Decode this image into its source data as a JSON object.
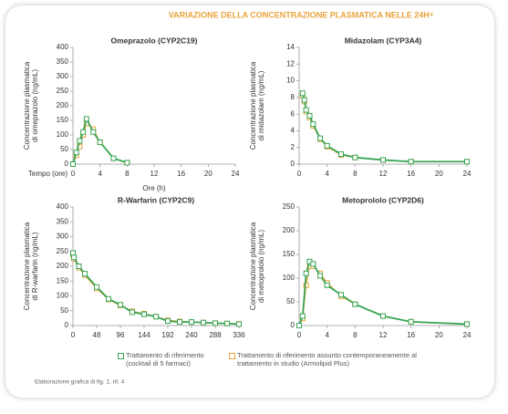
{
  "title": "VARIAZIONE DELLA CONCENTRAZIONE PLASMATICA NELLE 24H⁴",
  "footnote": "Elaborazione grafica di fig. 1, rif. 4",
  "chart_data": [
    {
      "type": "line",
      "title": "Omeprazolo (CYP2C19)",
      "ylabel": [
        "Concentrazione plasmatica",
        "di omeprazolo (ng/mL)"
      ],
      "xlabel": "Ore (h)",
      "xlabel_left": "Tempo (ore)",
      "x": [
        0,
        0.5,
        1,
        1.5,
        2,
        3,
        4,
        6,
        8
      ],
      "series": [
        {
          "name": "Trattamento di riferimento (cocktail di 5 farmaci)",
          "color": "#3aa655",
          "values": [
            0,
            40,
            80,
            110,
            155,
            110,
            75,
            20,
            5
          ]
        },
        {
          "name": "Trattamento di riferimento assunto contemporaneamente al trattamento in studio (Armolipid Plus)",
          "color": "#e8a33a",
          "values": [
            0,
            30,
            60,
            100,
            140,
            120,
            75,
            20,
            5
          ]
        }
      ],
      "xlim": [
        0,
        24
      ],
      "xticks": [
        0,
        4,
        8,
        12,
        16,
        20,
        24
      ],
      "ylim": [
        0,
        400
      ],
      "yticks": [
        0,
        50,
        100,
        150,
        200,
        250,
        300,
        350,
        400
      ]
    },
    {
      "type": "line",
      "title": "Midazolam (CYP3A4)",
      "ylabel": [
        "Concentrazione plasmatica",
        "di midazolam (ng/mL)"
      ],
      "x": [
        0.5,
        0.75,
        1,
        1.5,
        2,
        3,
        4,
        6,
        8,
        12,
        16,
        24
      ],
      "series": [
        {
          "color": "#3aa655",
          "values": [
            8.5,
            7.7,
            6.5,
            5.8,
            4.8,
            3.1,
            2.2,
            1.2,
            0.8,
            0.5,
            0.3,
            0.3
          ]
        },
        {
          "color": "#e8a33a",
          "values": [
            8.2,
            7.5,
            6.3,
            5.6,
            4.6,
            3.0,
            2.1,
            1.1,
            0.8,
            0.5,
            0.3,
            0.3
          ]
        }
      ],
      "xlim": [
        0,
        24
      ],
      "xticks": [
        0,
        4,
        8,
        12,
        16,
        20,
        24
      ],
      "ylim": [
        0,
        14
      ],
      "yticks": [
        0,
        2,
        4,
        6,
        8,
        10,
        12,
        14
      ]
    },
    {
      "type": "line",
      "title": "R-Warfarin (CYP2C9)",
      "ylabel": [
        "Concentrazione plasmatica",
        "di R-warfarin (ng/mL)"
      ],
      "x": [
        0,
        2,
        12,
        24,
        48,
        72,
        96,
        120,
        144,
        168,
        192,
        216,
        240,
        264,
        288,
        312,
        336
      ],
      "series": [
        {
          "color": "#3aa655",
          "values": [
            245,
            230,
            200,
            175,
            130,
            90,
            70,
            45,
            38,
            30,
            15,
            12,
            12,
            10,
            8,
            7,
            5
          ]
        },
        {
          "color": "#e8a33a",
          "values": [
            240,
            225,
            195,
            170,
            125,
            88,
            68,
            48,
            40,
            30,
            18,
            14,
            12,
            10,
            8,
            7,
            6
          ]
        }
      ],
      "xlim": [
        0,
        336
      ],
      "xticks": [
        0,
        48,
        96,
        144,
        192,
        240,
        288,
        336
      ],
      "ylim": [
        0,
        400
      ],
      "yticks": [
        0,
        50,
        100,
        150,
        200,
        250,
        300,
        350,
        400
      ]
    },
    {
      "type": "line",
      "title": "Metoprololo (CYP2D6)",
      "ylabel": [
        "Concentrazione plasmatica",
        "di metoprololo (ng/mL)"
      ],
      "x": [
        0,
        0.5,
        1,
        1.5,
        2,
        3,
        4,
        6,
        8,
        12,
        16,
        24
      ],
      "series": [
        {
          "color": "#3aa655",
          "values": [
            0,
            20,
            110,
            135,
            130,
            105,
            85,
            65,
            45,
            20,
            8,
            3
          ]
        },
        {
          "color": "#e8a33a",
          "values": [
            0,
            15,
            85,
            125,
            125,
            110,
            90,
            62,
            45,
            20,
            8,
            3
          ]
        }
      ],
      "xlim": [
        0,
        24
      ],
      "xticks": [
        0,
        4,
        8,
        12,
        16,
        20,
        24
      ],
      "ylim": [
        0,
        250
      ],
      "yticks": [
        0,
        50,
        100,
        150,
        200,
        250
      ]
    }
  ]
}
